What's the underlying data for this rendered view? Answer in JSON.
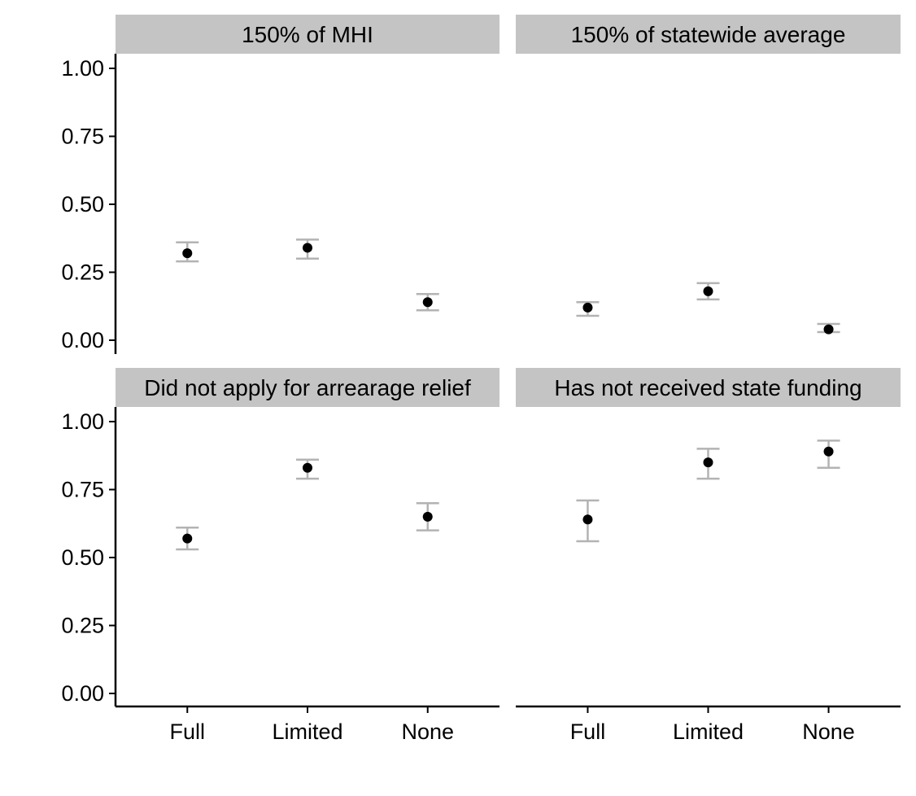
{
  "chart_data": {
    "type": "scatter",
    "x_categories": [
      "Full",
      "Limited",
      "None"
    ],
    "y_ticks": [
      0.0,
      0.25,
      0.5,
      0.75,
      1.0
    ],
    "y_tick_labels": [
      "0.00",
      "0.25",
      "0.50",
      "0.75",
      "1.00"
    ],
    "ylim": [
      0.0,
      1.05
    ],
    "grid": false,
    "colors": {
      "point": "#000000",
      "errorbar": "#b3b3b3",
      "strip": "#c4c4c4",
      "axis": "#000000"
    },
    "panels": [
      {
        "title": "150% of MHI",
        "points": [
          {
            "x": "Full",
            "y": 0.32,
            "low": 0.29,
            "high": 0.36
          },
          {
            "x": "Limited",
            "y": 0.34,
            "low": 0.3,
            "high": 0.37
          },
          {
            "x": "None",
            "y": 0.14,
            "low": 0.11,
            "high": 0.17
          }
        ]
      },
      {
        "title": "150% of statewide average",
        "points": [
          {
            "x": "Full",
            "y": 0.12,
            "low": 0.09,
            "high": 0.14
          },
          {
            "x": "Limited",
            "y": 0.18,
            "low": 0.15,
            "high": 0.21
          },
          {
            "x": "None",
            "y": 0.04,
            "low": 0.03,
            "high": 0.06
          }
        ]
      },
      {
        "title": "Did not apply for arrearage relief",
        "points": [
          {
            "x": "Full",
            "y": 0.57,
            "low": 0.53,
            "high": 0.61
          },
          {
            "x": "Limited",
            "y": 0.83,
            "low": 0.79,
            "high": 0.86
          },
          {
            "x": "None",
            "y": 0.65,
            "low": 0.6,
            "high": 0.7
          }
        ]
      },
      {
        "title": "Has not received state funding",
        "points": [
          {
            "x": "Full",
            "y": 0.64,
            "low": 0.56,
            "high": 0.71
          },
          {
            "x": "Limited",
            "y": 0.85,
            "low": 0.79,
            "high": 0.9
          },
          {
            "x": "None",
            "y": 0.89,
            "low": 0.83,
            "high": 0.93
          }
        ]
      }
    ]
  }
}
